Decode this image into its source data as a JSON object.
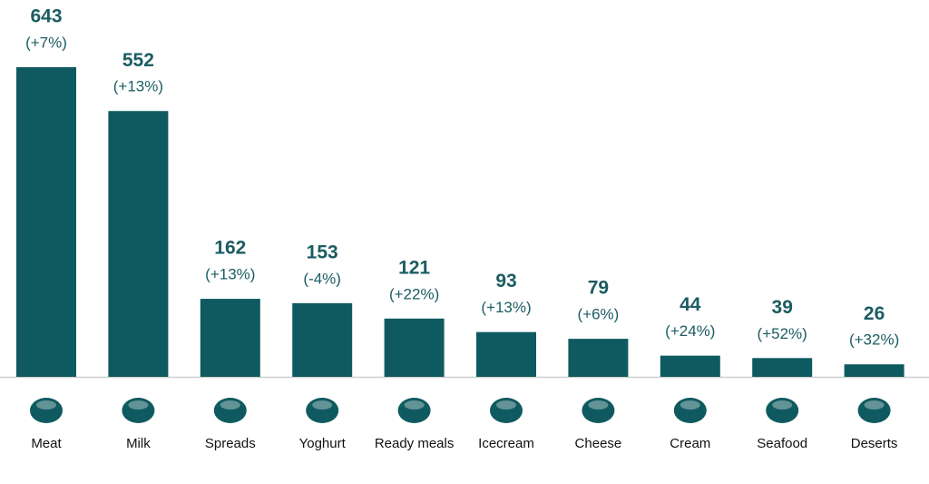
{
  "chart_data": {
    "type": "bar",
    "categories": [
      "Meat",
      "Milk",
      "Spreads",
      "Yoghurt",
      "Ready meals",
      "Icecream",
      "Cheese",
      "Cream",
      "Seafood",
      "Deserts"
    ],
    "values": [
      643,
      552,
      162,
      153,
      121,
      93,
      79,
      44,
      39,
      26
    ],
    "change_labels": [
      "(+7%)",
      "(+13%)",
      "(+13%)",
      "(-4%)",
      "(+22%)",
      "(+13%)",
      "(+6%)",
      "(+24%)",
      "(+52%)",
      "(+32%)"
    ],
    "color": "#0f5a60"
  }
}
